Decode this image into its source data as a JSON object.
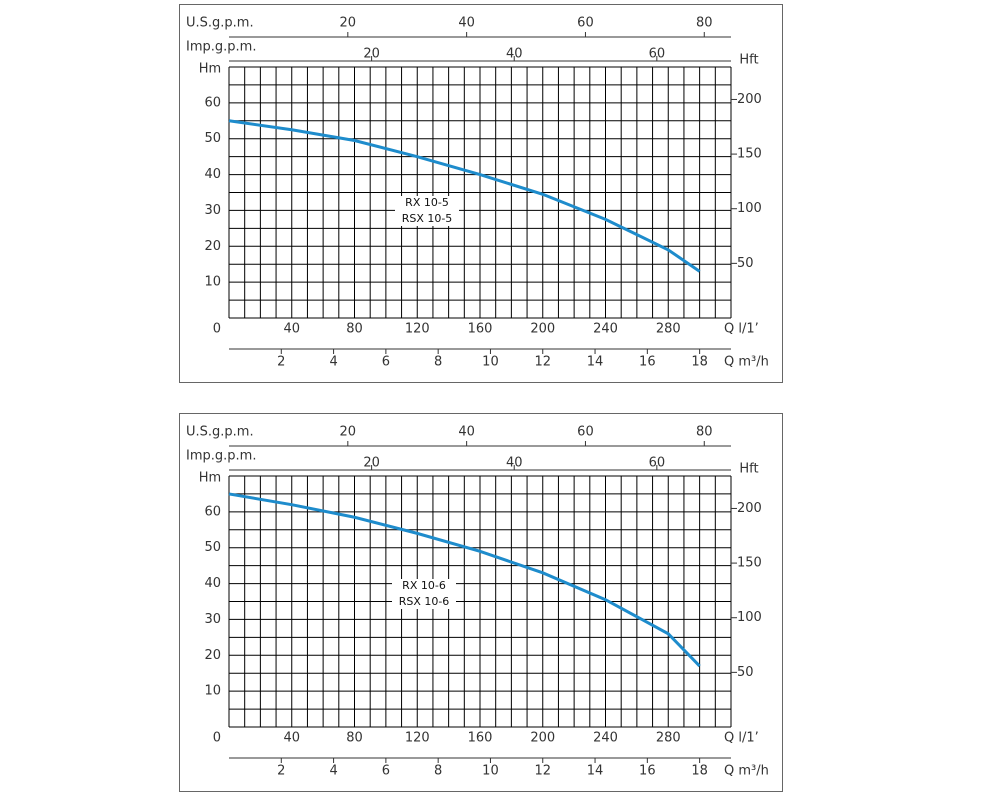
{
  "chart_data": [
    {
      "type": "line",
      "annotation": [
        "RX 10-5",
        "RSX 10-5"
      ],
      "xlabel": "Q l/1’",
      "ylabel": "Hm",
      "y2label": "Hft",
      "x": [
        0,
        40,
        80,
        120,
        160,
        200,
        240,
        280,
        300
      ],
      "series": [
        {
          "color": "#1e8ccc",
          "values": [
            55,
            52.5,
            49.5,
            45,
            40,
            34.5,
            27.5,
            19,
            13
          ]
        }
      ],
      "xlim": [
        0,
        320
      ],
      "xticks": [
        40,
        80,
        120,
        160,
        200,
        240,
        280
      ],
      "ylim": [
        0,
        70
      ],
      "yticks": [
        0,
        10,
        20,
        30,
        40,
        50,
        60
      ],
      "y2lim": [
        0,
        229.7
      ],
      "y2ticks": [
        50,
        100,
        150,
        200
      ],
      "xgrid": [
        0,
        10,
        20,
        30,
        40,
        50,
        60,
        70,
        80,
        90,
        100,
        110,
        120,
        130,
        140,
        150,
        160,
        170,
        180,
        190,
        200,
        210,
        220,
        230,
        240,
        250,
        260,
        270,
        280,
        290,
        300,
        310,
        320
      ],
      "ygrid": [
        0,
        5,
        10,
        15,
        20,
        25,
        30,
        35,
        40,
        45,
        50,
        55,
        60,
        65,
        70
      ],
      "extra_x_axes": [
        {
          "label": "U.S.g.p.m.",
          "xlim": [
            0,
            84.5
          ],
          "xticks": [
            20,
            40,
            60,
            80
          ]
        },
        {
          "label": "Imp.g.p.m.",
          "xlim": [
            0,
            70.4
          ],
          "xticks": [
            20,
            40,
            60
          ]
        },
        {
          "label": "Q m³/h",
          "xlim": [
            0,
            19.2
          ],
          "xticks": [
            2,
            4,
            6,
            8,
            10,
            12,
            14,
            16,
            18
          ]
        }
      ]
    },
    {
      "type": "line",
      "annotation": [
        "RX 10-6",
        "RSX 10-6"
      ],
      "xlabel": "Q l/1’",
      "ylabel": "Hm",
      "y2label": "Hft",
      "x": [
        0,
        40,
        80,
        120,
        160,
        200,
        240,
        280,
        300
      ],
      "series": [
        {
          "color": "#1e8ccc",
          "values": [
            65,
            62,
            58.5,
            54,
            49,
            43,
            35.5,
            26,
            17
          ]
        }
      ],
      "xlim": [
        0,
        320
      ],
      "xticks": [
        40,
        80,
        120,
        160,
        200,
        240,
        280
      ],
      "ylim": [
        0,
        70
      ],
      "yticks": [
        0,
        10,
        20,
        30,
        40,
        50,
        60
      ],
      "y2lim": [
        0,
        229.7
      ],
      "y2ticks": [
        50,
        100,
        150,
        200
      ],
      "xgrid": [
        0,
        10,
        20,
        30,
        40,
        50,
        60,
        70,
        80,
        90,
        100,
        110,
        120,
        130,
        140,
        150,
        160,
        170,
        180,
        190,
        200,
        210,
        220,
        230,
        240,
        250,
        260,
        270,
        280,
        290,
        300,
        310,
        320
      ],
      "ygrid": [
        0,
        5,
        10,
        15,
        20,
        25,
        30,
        35,
        40,
        45,
        50,
        55,
        60,
        65,
        70
      ],
      "extra_x_axes": [
        {
          "label": "U.S.g.p.m.",
          "xlim": [
            0,
            84.5
          ],
          "xticks": [
            20,
            40,
            60,
            80
          ]
        },
        {
          "label": "Imp.g.p.m.",
          "xlim": [
            0,
            70.4
          ],
          "xticks": [
            20,
            40,
            60
          ]
        },
        {
          "label": "Q m³/h",
          "xlim": [
            0,
            19.2
          ],
          "xticks": [
            2,
            4,
            6,
            8,
            10,
            12,
            14,
            16,
            18
          ]
        }
      ]
    }
  ]
}
